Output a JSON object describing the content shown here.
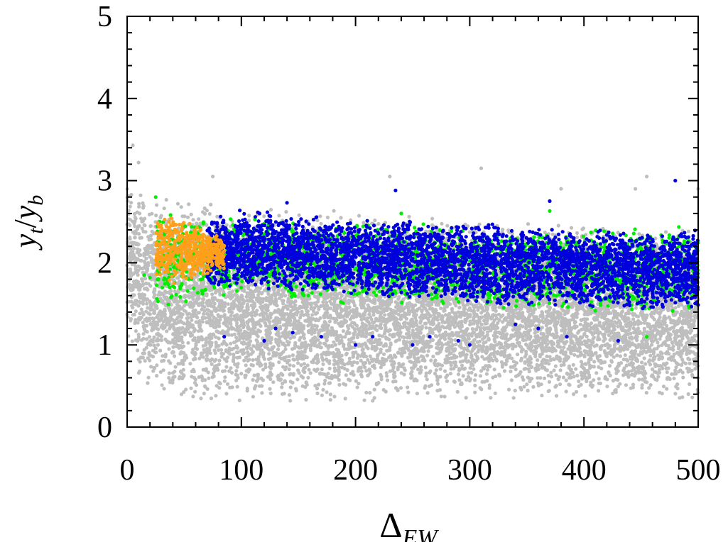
{
  "chart_data": {
    "type": "scatter",
    "title": "",
    "xlabel": "Δ",
    "xlabel_sub": "EW",
    "ylabel_num": "y",
    "ylabel_num_sub": "t",
    "ylabel_den": "y",
    "ylabel_den_sub": "b",
    "xlim": [
      0,
      500
    ],
    "ylim": [
      0,
      5
    ],
    "xticks": [
      0,
      100,
      200,
      300,
      400,
      500
    ],
    "yticks": [
      0,
      1,
      2,
      3,
      4,
      5
    ],
    "grid": false,
    "legend": "none",
    "series": [
      {
        "color": "#bebebe",
        "region": {
          "x_min": 0,
          "x_max": 500,
          "y_upper": [
            [
              0,
              3.0
            ],
            [
              20,
              2.85
            ],
            [
              100,
              2.7
            ],
            [
              200,
              2.65
            ],
            [
              300,
              2.55
            ],
            [
              400,
              2.45
            ],
            [
              500,
              2.4
            ]
          ],
          "y_lower": [
            [
              0,
              1.1
            ],
            [
              10,
              0.6
            ],
            [
              20,
              0.4
            ],
            [
              50,
              0.3
            ],
            [
              100,
              0.3
            ],
            [
              200,
              0.3
            ],
            [
              300,
              0.35
            ],
            [
              400,
              0.35
            ],
            [
              500,
              0.3
            ]
          ]
        },
        "n_points": 9000,
        "outliers": [
          [
            5,
            3.43
          ],
          [
            10,
            3.22
          ],
          [
            75,
            3.05
          ],
          [
            230,
            3.05
          ],
          [
            310,
            3.15
          ],
          [
            455,
            3.05
          ],
          [
            445,
            2.9
          ],
          [
            380,
            2.9
          ],
          [
            500,
            2.9
          ]
        ]
      },
      {
        "color": "#00ee00",
        "region": {
          "x_min": 25,
          "x_max": 500,
          "y_upper": [
            [
              25,
              2.6
            ],
            [
              100,
              2.55
            ],
            [
              200,
              2.5
            ],
            [
              300,
              2.45
            ],
            [
              400,
              2.45
            ],
            [
              500,
              2.45
            ]
          ],
          "y_lower": [
            [
              25,
              1.45
            ],
            [
              100,
              1.55
            ],
            [
              200,
              1.5
            ],
            [
              300,
              1.45
            ],
            [
              400,
              1.4
            ],
            [
              500,
              1.35
            ]
          ]
        },
        "n_points": 2200,
        "outliers": [
          [
            15,
            1.85
          ],
          [
            20,
            1.82
          ],
          [
            25,
            2.8
          ],
          [
            240,
            2.6
          ],
          [
            455,
            1.1
          ],
          [
            370,
            2.63
          ]
        ]
      },
      {
        "color": "#0000dd",
        "region": {
          "x_min": 70,
          "x_max": 500,
          "y_upper": [
            [
              70,
              2.55
            ],
            [
              100,
              2.65
            ],
            [
              200,
              2.55
            ],
            [
              300,
              2.5
            ],
            [
              400,
              2.4
            ],
            [
              500,
              2.4
            ]
          ],
          "y_lower": [
            [
              70,
              1.65
            ],
            [
              100,
              1.7
            ],
            [
              200,
              1.6
            ],
            [
              300,
              1.5
            ],
            [
              400,
              1.45
            ],
            [
              500,
              1.4
            ]
          ]
        },
        "n_points": 4500,
        "outliers": [
          [
            85,
            1.1
          ],
          [
            120,
            1.05
          ],
          [
            130,
            1.2
          ],
          [
            145,
            1.15
          ],
          [
            170,
            1.1
          ],
          [
            200,
            1.0
          ],
          [
            215,
            1.1
          ],
          [
            250,
            1.0
          ],
          [
            265,
            1.1
          ],
          [
            290,
            1.05
          ],
          [
            300,
            1.0
          ],
          [
            340,
            1.25
          ],
          [
            360,
            1.2
          ],
          [
            385,
            1.1
          ],
          [
            430,
            1.05
          ],
          [
            480,
            3.0
          ],
          [
            235,
            2.88
          ],
          [
            370,
            2.75
          ],
          [
            140,
            2.73
          ]
        ]
      },
      {
        "color": "#ff9f1a",
        "region": {
          "x_min": 25,
          "x_max": 85,
          "y_upper": [
            [
              25,
              2.55
            ],
            [
              40,
              2.62
            ],
            [
              60,
              2.5
            ],
            [
              85,
              2.3
            ]
          ],
          "y_lower": [
            [
              25,
              1.8
            ],
            [
              40,
              1.72
            ],
            [
              60,
              1.8
            ],
            [
              85,
              1.9
            ]
          ]
        },
        "n_points": 500,
        "outliers": []
      }
    ]
  }
}
